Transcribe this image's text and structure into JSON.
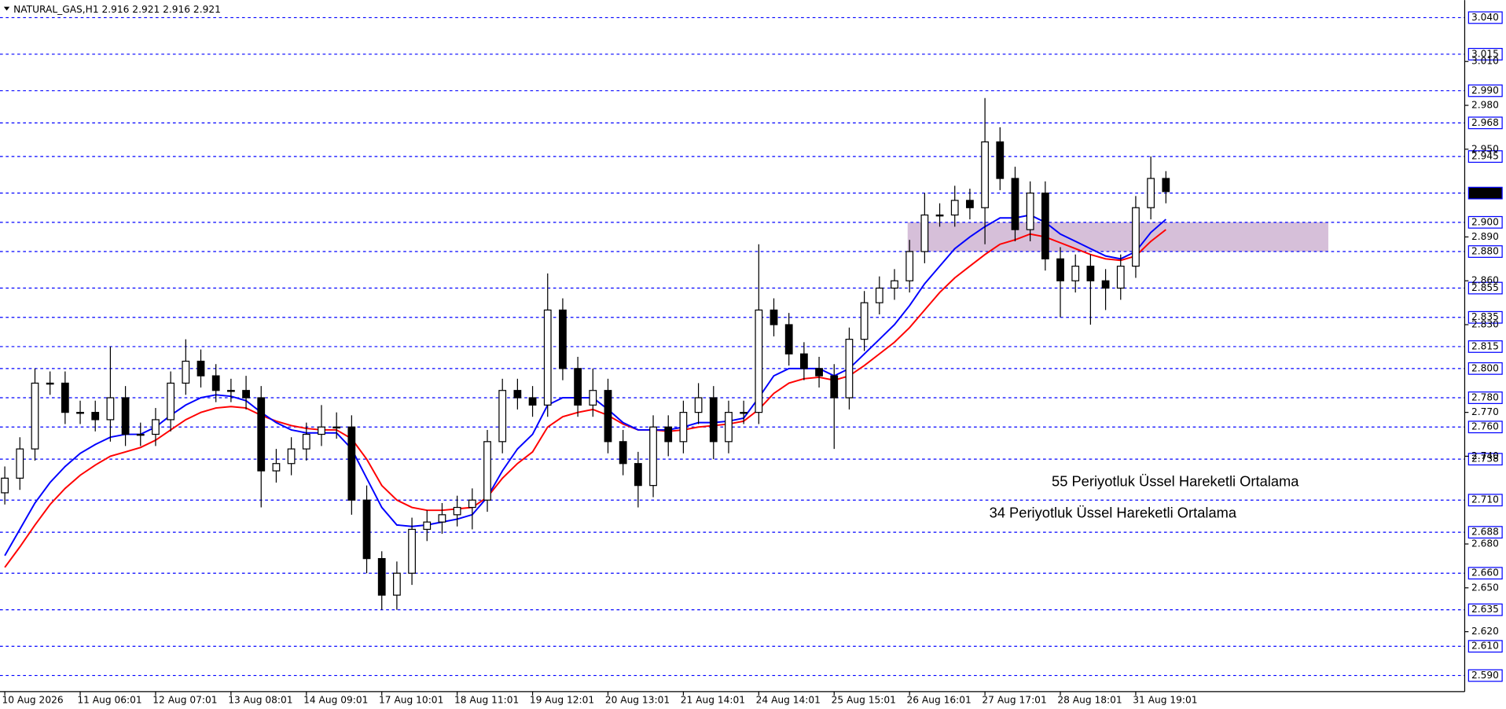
{
  "chart_data": {
    "type": "candlestick",
    "title": "NATURAL_GAS,H1  2.916 2.921 2.916 2.921",
    "categories": [
      "10 Aug 2026",
      null,
      null,
      null,
      null,
      "11 Aug 06:01",
      null,
      null,
      null,
      null,
      "12 Aug 07:01",
      null,
      null,
      null,
      null,
      "13 Aug 08:01",
      null,
      null,
      null,
      null,
      "14 Aug 09:01",
      null,
      null,
      null,
      null,
      "17 Aug 10:01",
      null,
      null,
      null,
      null,
      "18 Aug 11:01",
      null,
      null,
      null,
      null,
      "19 Aug 12:01",
      null,
      null,
      null,
      null,
      "20 Aug 13:01",
      null,
      null,
      null,
      null,
      "21 Aug 14:01",
      null,
      null,
      null,
      null,
      "24 Aug 14:01",
      null,
      null,
      null,
      null,
      "25 Aug 15:01",
      null,
      null,
      null,
      null,
      "26 Aug 16:01",
      null,
      null,
      null,
      null,
      "27 Aug 17:01",
      null,
      null,
      null,
      null,
      "28 Aug 18:01",
      null,
      null,
      null,
      null,
      "31 Aug 19:01",
      null,
      null
    ],
    "open": [
      2.715,
      2.725,
      2.745,
      2.79,
      2.79,
      2.77,
      2.77,
      2.765,
      2.78,
      2.755,
      2.755,
      2.765,
      2.79,
      2.805,
      2.795,
      2.785,
      2.785,
      2.78,
      2.73,
      2.735,
      2.745,
      2.755,
      2.76,
      2.76,
      2.71,
      2.67,
      2.645,
      2.66,
      2.69,
      2.695,
      2.7,
      2.705,
      2.71,
      2.75,
      2.785,
      2.78,
      2.775,
      2.84,
      2.8,
      2.775,
      2.785,
      2.75,
      2.735,
      2.72,
      2.76,
      2.75,
      2.77,
      2.78,
      2.75,
      2.77,
      2.77,
      2.84,
      2.83,
      2.81,
      2.8,
      2.795,
      2.78,
      2.82,
      2.845,
      2.855,
      2.86,
      2.88,
      2.905,
      2.905,
      2.915,
      2.91,
      2.955,
      2.93,
      2.895,
      2.92,
      2.875,
      2.86,
      2.87,
      2.86,
      2.855,
      2.87,
      2.91,
      2.93
    ],
    "high": [
      2.733,
      2.753,
      2.8,
      2.798,
      2.798,
      2.778,
      2.778,
      2.815,
      2.788,
      2.763,
      2.773,
      2.798,
      2.82,
      2.813,
      2.803,
      2.793,
      2.795,
      2.788,
      2.745,
      2.753,
      2.763,
      2.775,
      2.77,
      2.768,
      2.72,
      2.675,
      2.668,
      2.698,
      2.703,
      2.708,
      2.713,
      2.718,
      2.758,
      2.793,
      2.793,
      2.788,
      2.865,
      2.848,
      2.808,
      2.8,
      2.793,
      2.758,
      2.743,
      2.768,
      2.768,
      2.778,
      2.79,
      2.788,
      2.778,
      2.778,
      2.885,
      2.848,
      2.838,
      2.818,
      2.808,
      2.803,
      2.828,
      2.853,
      2.863,
      2.868,
      2.888,
      2.92,
      2.913,
      2.925,
      2.923,
      2.985,
      2.965,
      2.938,
      2.928,
      2.928,
      2.883,
      2.878,
      2.878,
      2.868,
      2.878,
      2.918,
      2.945,
      2.935
    ],
    "low": [
      2.707,
      2.717,
      2.737,
      2.782,
      2.762,
      2.762,
      2.757,
      2.75,
      2.747,
      2.747,
      2.747,
      2.757,
      2.782,
      2.787,
      2.777,
      2.777,
      2.772,
      2.705,
      2.722,
      2.727,
      2.737,
      2.747,
      2.752,
      2.7,
      2.66,
      2.635,
      2.635,
      2.652,
      2.682,
      2.687,
      2.692,
      2.69,
      2.702,
      2.742,
      2.772,
      2.767,
      2.767,
      2.792,
      2.767,
      2.767,
      2.742,
      2.727,
      2.705,
      2.712,
      2.74,
      2.742,
      2.762,
      2.738,
      2.742,
      2.762,
      2.762,
      2.822,
      2.802,
      2.792,
      2.787,
      2.745,
      2.772,
      2.812,
      2.837,
      2.847,
      2.852,
      2.872,
      2.897,
      2.897,
      2.902,
      2.885,
      2.922,
      2.887,
      2.887,
      2.867,
      2.835,
      2.852,
      2.83,
      2.84,
      2.847,
      2.862,
      2.902,
      2.913
    ],
    "close": [
      2.725,
      2.745,
      2.79,
      2.79,
      2.77,
      2.77,
      2.765,
      2.78,
      2.755,
      2.755,
      2.765,
      2.79,
      2.805,
      2.795,
      2.785,
      2.785,
      2.78,
      2.73,
      2.735,
      2.745,
      2.755,
      2.76,
      2.76,
      2.71,
      2.67,
      2.645,
      2.66,
      2.69,
      2.695,
      2.7,
      2.705,
      2.71,
      2.75,
      2.785,
      2.78,
      2.775,
      2.84,
      2.8,
      2.775,
      2.785,
      2.75,
      2.735,
      2.72,
      2.76,
      2.75,
      2.77,
      2.78,
      2.75,
      2.77,
      2.77,
      2.84,
      2.83,
      2.81,
      2.8,
      2.795,
      2.78,
      2.82,
      2.845,
      2.855,
      2.86,
      2.88,
      2.905,
      2.905,
      2.915,
      2.91,
      2.955,
      2.93,
      2.895,
      2.92,
      2.875,
      2.86,
      2.87,
      2.86,
      2.855,
      2.87,
      2.91,
      2.93,
      2.921
    ],
    "series": [
      {
        "name": "55 Periyotluk Üssel Hareketli Ortalama",
        "color": "#ff0000",
        "values": [
          2.664,
          2.678,
          2.693,
          2.707,
          2.718,
          2.727,
          2.734,
          2.74,
          2.743,
          2.746,
          2.751,
          2.758,
          2.765,
          2.77,
          2.773,
          2.774,
          2.773,
          2.768,
          2.764,
          2.761,
          2.759,
          2.758,
          2.758,
          2.752,
          2.738,
          2.72,
          2.71,
          2.705,
          2.703,
          2.703,
          2.704,
          2.705,
          2.712,
          2.725,
          2.735,
          2.743,
          2.76,
          2.767,
          2.77,
          2.772,
          2.768,
          2.762,
          2.758,
          2.758,
          2.757,
          2.758,
          2.76,
          2.761,
          2.762,
          2.764,
          2.772,
          2.783,
          2.79,
          2.793,
          2.794,
          2.792,
          2.795,
          2.802,
          2.81,
          2.818,
          2.828,
          2.84,
          2.852,
          2.862,
          2.87,
          2.878,
          2.885,
          2.888,
          2.892,
          2.89,
          2.886,
          2.882,
          2.878,
          2.875,
          2.874,
          2.877,
          2.887,
          2.895
        ]
      },
      {
        "name": "34 Periyotluk Üssel Hareketli Ortalama",
        "color": "#0000ff",
        "values": [
          2.672,
          2.69,
          2.708,
          2.722,
          2.733,
          2.742,
          2.748,
          2.753,
          2.755,
          2.755,
          2.76,
          2.768,
          2.775,
          2.78,
          2.782,
          2.781,
          2.778,
          2.77,
          2.763,
          2.758,
          2.756,
          2.756,
          2.756,
          2.745,
          2.725,
          2.705,
          2.693,
          2.692,
          2.693,
          2.695,
          2.697,
          2.7,
          2.712,
          2.73,
          2.745,
          2.755,
          2.775,
          2.78,
          2.78,
          2.78,
          2.772,
          2.763,
          2.758,
          2.758,
          2.758,
          2.76,
          2.763,
          2.763,
          2.764,
          2.766,
          2.78,
          2.795,
          2.8,
          2.8,
          2.8,
          2.795,
          2.8,
          2.81,
          2.82,
          2.83,
          2.843,
          2.858,
          2.87,
          2.882,
          2.89,
          2.897,
          2.903,
          2.903,
          2.905,
          2.9,
          2.892,
          2.887,
          2.882,
          2.877,
          2.875,
          2.88,
          2.893,
          2.902
        ]
      }
    ],
    "zone": {
      "from": 2.88,
      "to": 2.9,
      "color": "#d6bfd9"
    },
    "ylim": [
      2.579,
      3.052
    ],
    "levels": [
      {
        "value": 3.04,
        "label": "3.040"
      },
      {
        "value": 3.015,
        "label": "3.015"
      },
      {
        "value": 2.99,
        "label": "2.990"
      },
      {
        "value": 2.968,
        "label": "2.968"
      },
      {
        "value": 2.945,
        "label": "2.945"
      },
      {
        "value": 2.9,
        "label": "2.900"
      },
      {
        "value": 2.88,
        "label": "2.880"
      },
      {
        "value": 2.855,
        "label": "2.855"
      },
      {
        "value": 2.835,
        "label": "2.835"
      },
      {
        "value": 2.815,
        "label": "2.815"
      },
      {
        "value": 2.8,
        "label": "2.800"
      },
      {
        "value": 2.78,
        "label": "2.780"
      },
      {
        "value": 2.76,
        "label": "2.760"
      },
      {
        "value": 2.738,
        "label": "2.738"
      },
      {
        "value": 2.71,
        "label": "2.710"
      },
      {
        "value": 2.688,
        "label": "2.688"
      },
      {
        "value": 2.66,
        "label": "2.660"
      },
      {
        "value": 2.635,
        "label": "2.635"
      },
      {
        "value": 2.61,
        "label": "2.610"
      },
      {
        "value": 2.59,
        "label": "2.590"
      }
    ],
    "level_color": "#0000ff",
    "current_level": {
      "value": 2.92,
      "label": "2.920"
    },
    "yticks": [
      {
        "value": 3.01,
        "label": "3.010"
      },
      {
        "value": 2.98,
        "label": "2.980"
      },
      {
        "value": 2.95,
        "label": "2.950"
      },
      {
        "value": 2.89,
        "label": "2.890"
      },
      {
        "value": 2.86,
        "label": "2.860"
      },
      {
        "value": 2.83,
        "label": "2.830"
      },
      {
        "value": 2.77,
        "label": "2.770"
      },
      {
        "value": 2.74,
        "label": "2.740"
      },
      {
        "value": 2.68,
        "label": "2.680"
      },
      {
        "value": 2.65,
        "label": "2.650"
      },
      {
        "value": 2.62,
        "label": "2.620"
      }
    ]
  }
}
